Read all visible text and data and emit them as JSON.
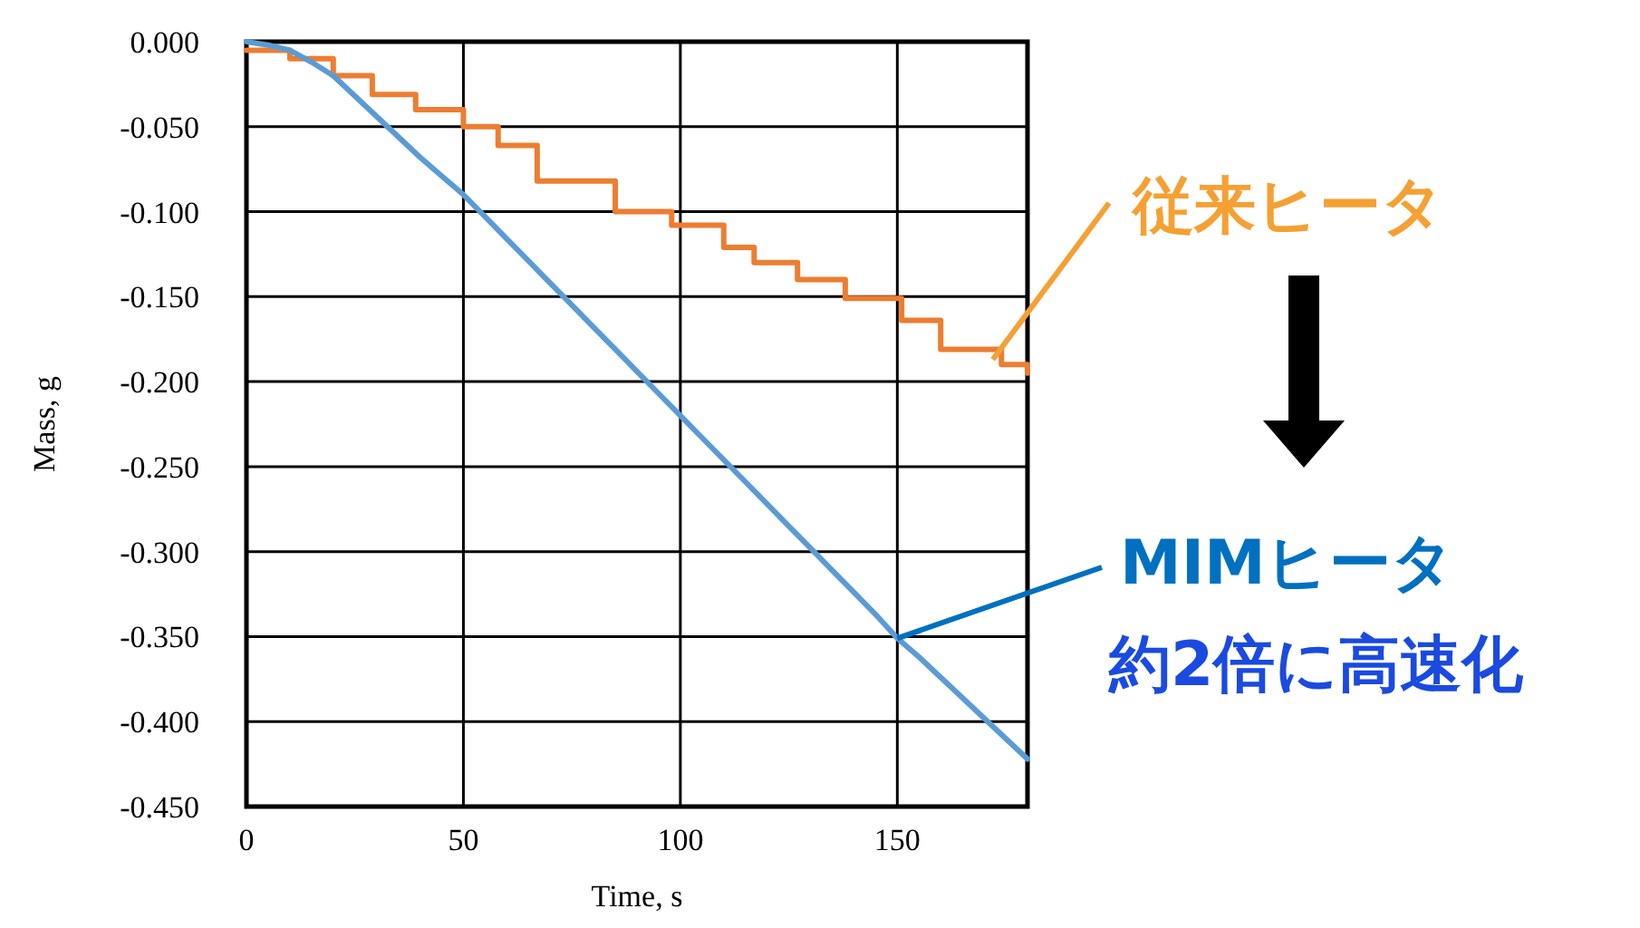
{
  "chart_data": {
    "type": "line",
    "xlabel": "Time, s",
    "ylabel": "Mass, g",
    "xlim": [
      0,
      180
    ],
    "xticks": [
      0,
      50,
      100,
      150
    ],
    "ylim": [
      -0.45,
      0
    ],
    "yticks": [
      {
        "value": 0,
        "label": "0.000"
      },
      {
        "value": -0.05,
        "label": "-0.050"
      },
      {
        "value": -0.1,
        "label": "-0.100"
      },
      {
        "value": -0.15,
        "label": "-0.150"
      },
      {
        "value": -0.2,
        "label": "-0.200"
      },
      {
        "value": -0.25,
        "label": "-0.250"
      },
      {
        "value": -0.3,
        "label": "-0.300"
      },
      {
        "value": -0.35,
        "label": "-0.350"
      },
      {
        "value": -0.4,
        "label": "-0.400"
      },
      {
        "value": -0.45,
        "label": "-0.450"
      }
    ],
    "grid": true,
    "marker": "none",
    "line_style": "solid",
    "series": [
      {
        "type": "step",
        "color": "#ed7d31",
        "x": [
          0,
          10,
          20,
          29,
          39,
          50,
          58,
          67,
          85,
          98,
          110,
          117,
          127,
          138,
          151,
          160,
          174,
          180
        ],
        "values": [
          -0.005,
          -0.01,
          -0.02,
          -0.031,
          -0.04,
          -0.05,
          -0.061,
          -0.082,
          -0.1,
          -0.108,
          -0.121,
          -0.13,
          -0.14,
          -0.151,
          -0.164,
          -0.181,
          -0.19,
          -0.195
        ]
      },
      {
        "color": "#5b9bd5",
        "x": [
          0,
          5,
          10,
          15,
          20,
          25,
          30,
          35,
          40,
          45,
          50,
          55,
          60,
          65,
          70,
          75,
          80,
          85,
          90,
          95,
          100,
          105,
          110,
          115,
          120,
          125,
          130,
          135,
          140,
          145,
          150,
          155,
          160,
          165,
          170,
          175,
          180
        ],
        "values": [
          0,
          -0.002,
          -0.005,
          -0.012,
          -0.02,
          -0.032,
          -0.044,
          -0.056,
          -0.068,
          -0.079,
          -0.09,
          -0.103,
          -0.116,
          -0.129,
          -0.142,
          -0.155,
          -0.168,
          -0.181,
          -0.194,
          -0.207,
          -0.22,
          -0.233,
          -0.246,
          -0.259,
          -0.272,
          -0.285,
          -0.298,
          -0.311,
          -0.324,
          -0.337,
          -0.351,
          -0.362,
          -0.374,
          -0.386,
          -0.398,
          -0.41,
          -0.422
        ]
      }
    ],
    "annotations": [
      {
        "text": "従来ヒータ",
        "x": 172,
        "y": -0.187
      },
      {
        "text": "MIMヒータ",
        "x": 150,
        "y": -0.351
      },
      "約2倍に高速化"
    ]
  }
}
